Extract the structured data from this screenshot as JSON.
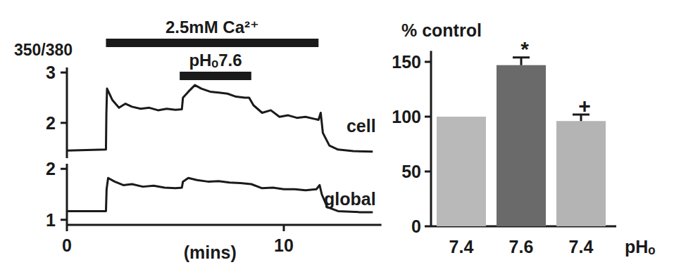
{
  "chart_data": [
    {
      "type": "line",
      "ylabel": "350/380",
      "xlim": [
        0,
        14.5
      ],
      "ylim": [
        1.3,
        3.1
      ],
      "yticks": [
        2,
        3
      ],
      "tick_labels": "y",
      "x": [
        0,
        1.8,
        1.82,
        1.85,
        2.1,
        2.4,
        2.7,
        3.0,
        3.4,
        3.8,
        4.2,
        4.6,
        5.0,
        5.3,
        5.35,
        5.6,
        5.9,
        6.2,
        6.6,
        7.0,
        7.4,
        7.8,
        8.2,
        8.4,
        8.6,
        9.0,
        9.4,
        9.8,
        10.2,
        10.6,
        11.0,
        11.4,
        11.6,
        11.7,
        11.8,
        12.1,
        12.5,
        13.2,
        14.1
      ],
      "series": [
        {
          "name": "cell",
          "color": "#1a1a1a",
          "values": [
            1.45,
            1.47,
            2.2,
            2.68,
            2.45,
            2.3,
            2.38,
            2.32,
            2.28,
            2.3,
            2.25,
            2.28,
            2.26,
            2.27,
            2.5,
            2.62,
            2.75,
            2.68,
            2.62,
            2.6,
            2.58,
            2.52,
            2.5,
            2.5,
            2.35,
            2.2,
            2.25,
            2.12,
            2.15,
            2.1,
            2.12,
            2.08,
            2.06,
            2.2,
            1.8,
            1.55,
            1.47,
            1.44,
            1.43
          ]
        }
      ],
      "annotations": [
        {
          "text": "2.5mM Ca²⁺",
          "x_start": 1.8,
          "x_end": 11.6
        },
        {
          "text": "pHₒ7.6",
          "x_start": 5.2,
          "x_end": 8.5
        }
      ]
    },
    {
      "type": "line",
      "xlabel": "(mins)",
      "xlim": [
        0,
        14.5
      ],
      "ylim": [
        0.9,
        2.1
      ],
      "xticks": [
        0,
        10
      ],
      "yticks": [
        1,
        2
      ],
      "x": [
        0,
        1.8,
        1.83,
        1.9,
        2.2,
        2.6,
        3.0,
        3.5,
        4.0,
        4.5,
        5.0,
        5.3,
        5.35,
        5.6,
        6.0,
        6.5,
        7.0,
        7.5,
        8.0,
        8.5,
        9.0,
        9.5,
        10.0,
        10.5,
        11.0,
        11.5,
        11.65,
        11.75,
        12.0,
        12.5,
        13.5,
        14.1
      ],
      "series": [
        {
          "name": "global",
          "color": "#1a1a1a",
          "values": [
            1.17,
            1.17,
            1.6,
            1.82,
            1.75,
            1.68,
            1.7,
            1.65,
            1.67,
            1.63,
            1.62,
            1.63,
            1.75,
            1.82,
            1.78,
            1.75,
            1.76,
            1.73,
            1.72,
            1.7,
            1.62,
            1.63,
            1.6,
            1.6,
            1.58,
            1.6,
            1.68,
            1.5,
            1.25,
            1.17,
            1.15,
            1.15
          ]
        }
      ]
    },
    {
      "type": "bar",
      "title": "% control",
      "xlabel": "pHₒ",
      "categories": [
        "7.4",
        "7.6",
        "7.4"
      ],
      "values": [
        100,
        147,
        96
      ],
      "errors": [
        0,
        7,
        6
      ],
      "colors": [
        "#b9b9b9",
        "#6a6a6a",
        "#b4b4b4"
      ],
      "ylim": [
        0,
        160
      ],
      "yticks": [
        0,
        50,
        100,
        150
      ],
      "annotations": [
        {
          "index": 1,
          "text": "*"
        },
        {
          "index": 2,
          "text": "+"
        }
      ]
    }
  ]
}
